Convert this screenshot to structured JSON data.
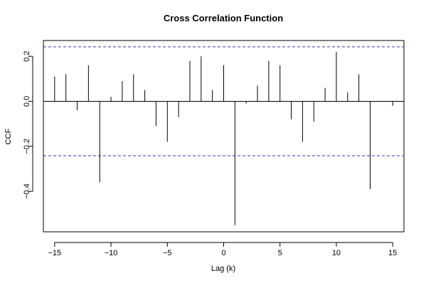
{
  "chart_data": {
    "type": "bar",
    "title": "Cross Correlation Function",
    "xlabel": "Lag (k)",
    "ylabel": "CCF",
    "xlim": [
      -16,
      16
    ],
    "ylim": [
      -0.58,
      0.27
    ],
    "xticks": [
      -15,
      -10,
      -5,
      0,
      5,
      10,
      15
    ],
    "xtick_labels": [
      "−15",
      "−10",
      "−5",
      "0",
      "5",
      "10",
      "15"
    ],
    "yticks": [
      -0.4,
      -0.2,
      0.0,
      0.2
    ],
    "ytick_labels": [
      "−0.4",
      "−0.2",
      "0.0",
      "0.2"
    ],
    "lags": [
      -15,
      -14,
      -13,
      -12,
      -11,
      -10,
      -9,
      -8,
      -7,
      -6,
      -5,
      -4,
      -3,
      -2,
      -1,
      0,
      1,
      2,
      3,
      4,
      5,
      6,
      7,
      8,
      9,
      10,
      11,
      12,
      13,
      14,
      15
    ],
    "values": [
      0.11,
      0.12,
      -0.04,
      0.16,
      -0.36,
      0.02,
      0.09,
      0.12,
      0.05,
      -0.11,
      -0.18,
      -0.07,
      0.18,
      0.2,
      0.05,
      0.16,
      -0.55,
      -0.01,
      0.07,
      0.18,
      0.16,
      -0.08,
      -0.18,
      -0.09,
      0.06,
      0.22,
      0.04,
      0.12,
      -0.39,
      0.0,
      -0.02
    ],
    "confidence_bound": 0.242,
    "grid": false,
    "colors": {
      "bars": "#000000",
      "confidence_lines": "#3333cc",
      "axes": "#000000"
    }
  }
}
